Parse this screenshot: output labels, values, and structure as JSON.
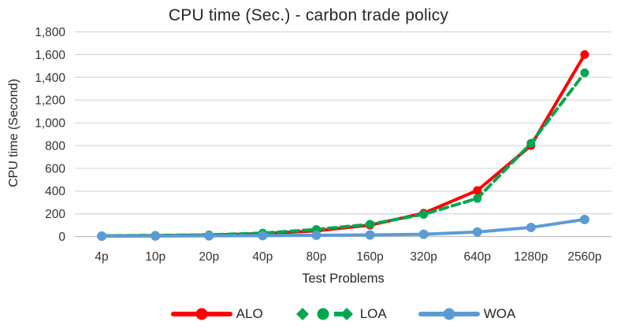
{
  "chart_data": {
    "type": "line",
    "title": "CPU time (Sec.) - carbon trade policy",
    "xlabel": "Test Problems",
    "ylabel": "CPU time (Second)",
    "categories": [
      "4p",
      "10p",
      "20p",
      "40p",
      "80p",
      "160p",
      "320p",
      "640p",
      "1280p",
      "2560p"
    ],
    "series": [
      {
        "name": "ALO",
        "color": "#FF0000",
        "style": "solid",
        "marker": "circle",
        "values": [
          5,
          8,
          13,
          25,
          50,
          100,
          205,
          405,
          800,
          1600
        ]
      },
      {
        "name": "LOA",
        "color": "#00A650",
        "style": "dashed",
        "marker": "circle",
        "values": [
          7,
          10,
          15,
          30,
          62,
          108,
          195,
          335,
          820,
          1440
        ]
      },
      {
        "name": "WOA",
        "color": "#5B9BD5",
        "style": "solid",
        "marker": "circle",
        "values": [
          3,
          4,
          6,
          8,
          11,
          14,
          20,
          40,
          80,
          150
        ]
      }
    ],
    "ylim": [
      0,
      1800
    ],
    "y_ticks": [
      "0",
      "200",
      "400",
      "600",
      "800",
      "1,000",
      "1,200",
      "1,400",
      "1,600",
      "1,800"
    ],
    "grid": true,
    "legend_position": "bottom",
    "colors": {
      "gridline": "#D6D6D6",
      "axis_line": "#BFBFBF",
      "tick_text": "#333333",
      "title_text": "#262626"
    }
  }
}
